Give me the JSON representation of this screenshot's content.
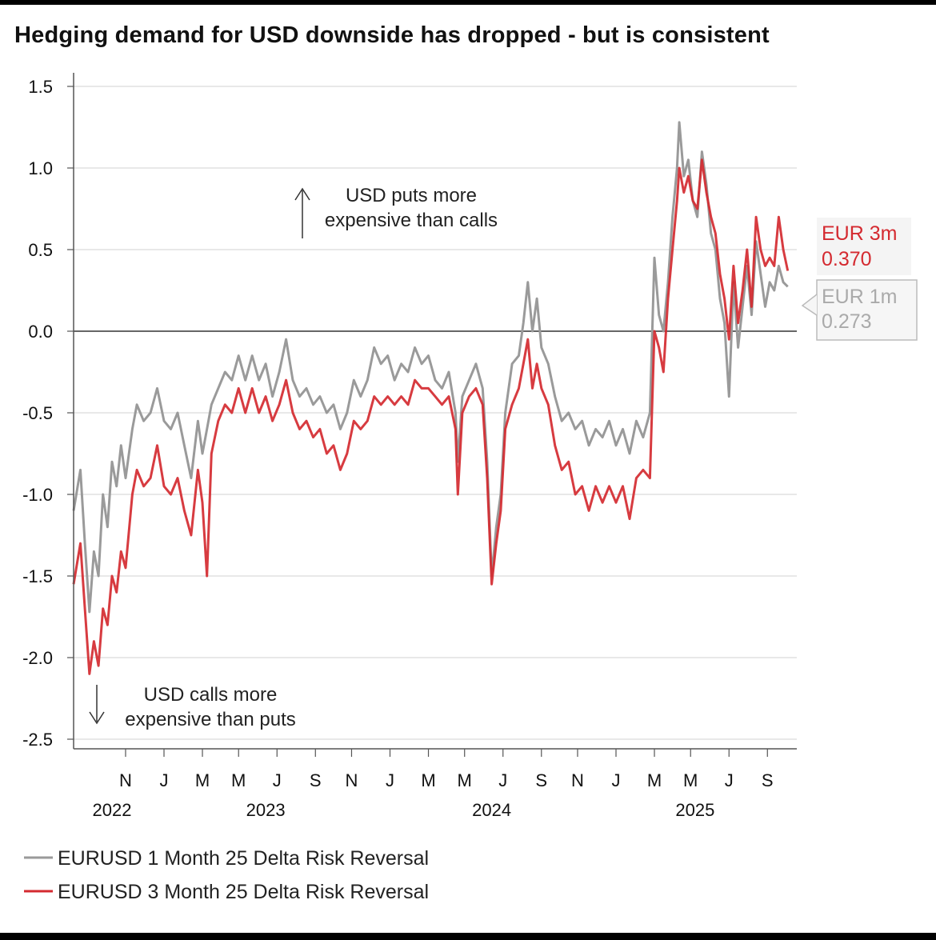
{
  "title": "Hedging demand for USD downside has dropped - but is consistent",
  "colors": {
    "one_month": "#9a9a9a",
    "three_month": "#d42a30",
    "overlap": "#8b1a1e",
    "grid": "#d9d9d9",
    "zero": "#666666"
  },
  "annotations": {
    "up_line1": "USD puts more",
    "up_line2": "expensive than calls",
    "down_line1": "USD calls more",
    "down_line2": "expensive than puts"
  },
  "end_labels": {
    "three_month": {
      "name": "EUR 3m",
      "value": "0.370"
    },
    "one_month": {
      "name": "EUR 1m",
      "value": "0.273"
    }
  },
  "legend": [
    {
      "label": "EURUSD 1 Month 25 Delta Risk Reversal",
      "color": "#9a9a9a"
    },
    {
      "label": "EURUSD 3 Month 25 Delta Risk Reversal",
      "color": "#d42a30"
    }
  ],
  "chart_data": {
    "type": "line",
    "title": "Hedging demand for USD downside has dropped - but is consistent",
    "xlabel": "",
    "ylabel": "",
    "ylim": [
      -2.5,
      1.5
    ],
    "yticks": [
      "1.5",
      "1.0",
      "0.5",
      "0.0",
      "-0.5",
      "-1.0",
      "-1.5",
      "-2.0",
      "-2.5"
    ],
    "xlim": [
      2022.6,
      2025.8
    ],
    "xticks": [
      {
        "x": 2022.83,
        "label": "N"
      },
      {
        "x": 2023.0,
        "label": "J"
      },
      {
        "x": 2023.17,
        "label": "M"
      },
      {
        "x": 2023.33,
        "label": "M"
      },
      {
        "x": 2023.5,
        "label": "J"
      },
      {
        "x": 2023.67,
        "label": "S"
      },
      {
        "x": 2023.83,
        "label": "N"
      },
      {
        "x": 2024.0,
        "label": "J"
      },
      {
        "x": 2024.17,
        "label": "M"
      },
      {
        "x": 2024.33,
        "label": "M"
      },
      {
        "x": 2024.5,
        "label": "J"
      },
      {
        "x": 2024.67,
        "label": "S"
      },
      {
        "x": 2024.83,
        "label": "N"
      },
      {
        "x": 2025.0,
        "label": "J"
      },
      {
        "x": 2025.17,
        "label": "M"
      },
      {
        "x": 2025.33,
        "label": "M"
      },
      {
        "x": 2025.5,
        "label": "J"
      },
      {
        "x": 2025.67,
        "label": "S"
      }
    ],
    "year_labels": [
      {
        "x": 2022.77,
        "label": "2022"
      },
      {
        "x": 2023.45,
        "label": "2023"
      },
      {
        "x": 2024.45,
        "label": "2024"
      },
      {
        "x": 2025.35,
        "label": "2025"
      }
    ],
    "series": [
      {
        "name": "EURUSD 1 Month 25 Delta Risk Reversal",
        "color": "#9a9a9a",
        "points": [
          [
            2022.6,
            -1.1
          ],
          [
            2022.63,
            -0.85
          ],
          [
            2022.65,
            -1.3
          ],
          [
            2022.67,
            -1.72
          ],
          [
            2022.69,
            -1.35
          ],
          [
            2022.71,
            -1.5
          ],
          [
            2022.73,
            -1.0
          ],
          [
            2022.75,
            -1.2
          ],
          [
            2022.77,
            -0.8
          ],
          [
            2022.79,
            -0.95
          ],
          [
            2022.81,
            -0.7
          ],
          [
            2022.83,
            -0.9
          ],
          [
            2022.86,
            -0.6
          ],
          [
            2022.88,
            -0.45
          ],
          [
            2022.91,
            -0.55
          ],
          [
            2022.94,
            -0.5
          ],
          [
            2022.97,
            -0.35
          ],
          [
            2023.0,
            -0.55
          ],
          [
            2023.03,
            -0.6
          ],
          [
            2023.06,
            -0.5
          ],
          [
            2023.09,
            -0.7
          ],
          [
            2023.12,
            -0.9
          ],
          [
            2023.15,
            -0.55
          ],
          [
            2023.17,
            -0.75
          ],
          [
            2023.19,
            -0.6
          ],
          [
            2023.21,
            -0.45
          ],
          [
            2023.24,
            -0.35
          ],
          [
            2023.27,
            -0.25
          ],
          [
            2023.3,
            -0.3
          ],
          [
            2023.33,
            -0.15
          ],
          [
            2023.36,
            -0.3
          ],
          [
            2023.39,
            -0.15
          ],
          [
            2023.42,
            -0.3
          ],
          [
            2023.45,
            -0.2
          ],
          [
            2023.48,
            -0.4
          ],
          [
            2023.51,
            -0.25
          ],
          [
            2023.54,
            -0.05
          ],
          [
            2023.57,
            -0.3
          ],
          [
            2023.6,
            -0.4
          ],
          [
            2023.63,
            -0.35
          ],
          [
            2023.66,
            -0.45
          ],
          [
            2023.69,
            -0.4
          ],
          [
            2023.72,
            -0.5
          ],
          [
            2023.75,
            -0.45
          ],
          [
            2023.78,
            -0.6
          ],
          [
            2023.81,
            -0.5
          ],
          [
            2023.84,
            -0.3
          ],
          [
            2023.87,
            -0.4
          ],
          [
            2023.9,
            -0.3
          ],
          [
            2023.93,
            -0.1
          ],
          [
            2023.96,
            -0.2
          ],
          [
            2023.99,
            -0.15
          ],
          [
            2024.02,
            -0.3
          ],
          [
            2024.05,
            -0.2
          ],
          [
            2024.08,
            -0.25
          ],
          [
            2024.11,
            -0.1
          ],
          [
            2024.14,
            -0.2
          ],
          [
            2024.17,
            -0.15
          ],
          [
            2024.2,
            -0.3
          ],
          [
            2024.23,
            -0.35
          ],
          [
            2024.26,
            -0.25
          ],
          [
            2024.29,
            -0.5
          ],
          [
            2024.3,
            -0.8
          ],
          [
            2024.32,
            -0.4
          ],
          [
            2024.35,
            -0.3
          ],
          [
            2024.38,
            -0.2
          ],
          [
            2024.41,
            -0.35
          ],
          [
            2024.43,
            -0.8
          ],
          [
            2024.45,
            -1.5
          ],
          [
            2024.47,
            -1.2
          ],
          [
            2024.49,
            -1.0
          ],
          [
            2024.51,
            -0.5
          ],
          [
            2024.54,
            -0.2
          ],
          [
            2024.57,
            -0.15
          ],
          [
            2024.59,
            0.05
          ],
          [
            2024.61,
            0.3
          ],
          [
            2024.63,
            0.0
          ],
          [
            2024.65,
            0.2
          ],
          [
            2024.67,
            -0.1
          ],
          [
            2024.7,
            -0.2
          ],
          [
            2024.73,
            -0.4
          ],
          [
            2024.76,
            -0.55
          ],
          [
            2024.79,
            -0.5
          ],
          [
            2024.82,
            -0.6
          ],
          [
            2024.85,
            -0.55
          ],
          [
            2024.88,
            -0.7
          ],
          [
            2024.91,
            -0.6
          ],
          [
            2024.94,
            -0.65
          ],
          [
            2024.97,
            -0.55
          ],
          [
            2025.0,
            -0.7
          ],
          [
            2025.03,
            -0.6
          ],
          [
            2025.06,
            -0.75
          ],
          [
            2025.09,
            -0.55
          ],
          [
            2025.12,
            -0.65
          ],
          [
            2025.15,
            -0.5
          ],
          [
            2025.17,
            0.45
          ],
          [
            2025.19,
            0.1
          ],
          [
            2025.21,
            0.0
          ],
          [
            2025.23,
            0.3
          ],
          [
            2025.25,
            0.7
          ],
          [
            2025.27,
            1.0
          ],
          [
            2025.28,
            1.28
          ],
          [
            2025.3,
            0.95
          ],
          [
            2025.32,
            1.05
          ],
          [
            2025.34,
            0.8
          ],
          [
            2025.36,
            0.7
          ],
          [
            2025.38,
            1.1
          ],
          [
            2025.4,
            0.9
          ],
          [
            2025.42,
            0.6
          ],
          [
            2025.44,
            0.5
          ],
          [
            2025.46,
            0.2
          ],
          [
            2025.48,
            0.05
          ],
          [
            2025.5,
            -0.4
          ],
          [
            2025.52,
            0.3
          ],
          [
            2025.54,
            -0.1
          ],
          [
            2025.56,
            0.15
          ],
          [
            2025.58,
            0.4
          ],
          [
            2025.6,
            0.1
          ],
          [
            2025.62,
            0.55
          ],
          [
            2025.64,
            0.35
          ],
          [
            2025.66,
            0.15
          ],
          [
            2025.68,
            0.3
          ],
          [
            2025.7,
            0.25
          ],
          [
            2025.72,
            0.4
          ],
          [
            2025.74,
            0.3
          ],
          [
            2025.76,
            0.273
          ]
        ]
      },
      {
        "name": "EURUSD 3 Month 25 Delta Risk Reversal",
        "color": "#d42a30",
        "points": [
          [
            2022.6,
            -1.55
          ],
          [
            2022.63,
            -1.3
          ],
          [
            2022.65,
            -1.7
          ],
          [
            2022.67,
            -2.1
          ],
          [
            2022.69,
            -1.9
          ],
          [
            2022.71,
            -2.05
          ],
          [
            2022.73,
            -1.7
          ],
          [
            2022.75,
            -1.8
          ],
          [
            2022.77,
            -1.5
          ],
          [
            2022.79,
            -1.6
          ],
          [
            2022.81,
            -1.35
          ],
          [
            2022.83,
            -1.45
          ],
          [
            2022.86,
            -1.0
          ],
          [
            2022.88,
            -0.85
          ],
          [
            2022.91,
            -0.95
          ],
          [
            2022.94,
            -0.9
          ],
          [
            2022.97,
            -0.7
          ],
          [
            2023.0,
            -0.95
          ],
          [
            2023.03,
            -1.0
          ],
          [
            2023.06,
            -0.9
          ],
          [
            2023.09,
            -1.1
          ],
          [
            2023.12,
            -1.25
          ],
          [
            2023.15,
            -0.85
          ],
          [
            2023.17,
            -1.05
          ],
          [
            2023.19,
            -1.5
          ],
          [
            2023.21,
            -0.75
          ],
          [
            2023.24,
            -0.55
          ],
          [
            2023.27,
            -0.45
          ],
          [
            2023.3,
            -0.5
          ],
          [
            2023.33,
            -0.35
          ],
          [
            2023.36,
            -0.5
          ],
          [
            2023.39,
            -0.35
          ],
          [
            2023.42,
            -0.5
          ],
          [
            2023.45,
            -0.4
          ],
          [
            2023.48,
            -0.55
          ],
          [
            2023.51,
            -0.45
          ],
          [
            2023.54,
            -0.3
          ],
          [
            2023.57,
            -0.5
          ],
          [
            2023.6,
            -0.6
          ],
          [
            2023.63,
            -0.55
          ],
          [
            2023.66,
            -0.65
          ],
          [
            2023.69,
            -0.6
          ],
          [
            2023.72,
            -0.75
          ],
          [
            2023.75,
            -0.7
          ],
          [
            2023.78,
            -0.85
          ],
          [
            2023.81,
            -0.75
          ],
          [
            2023.84,
            -0.55
          ],
          [
            2023.87,
            -0.6
          ],
          [
            2023.9,
            -0.55
          ],
          [
            2023.93,
            -0.4
          ],
          [
            2023.96,
            -0.45
          ],
          [
            2023.99,
            -0.4
          ],
          [
            2024.02,
            -0.45
          ],
          [
            2024.05,
            -0.4
          ],
          [
            2024.08,
            -0.45
          ],
          [
            2024.11,
            -0.3
          ],
          [
            2024.14,
            -0.35
          ],
          [
            2024.17,
            -0.35
          ],
          [
            2024.2,
            -0.4
          ],
          [
            2024.23,
            -0.45
          ],
          [
            2024.26,
            -0.4
          ],
          [
            2024.29,
            -0.6
          ],
          [
            2024.3,
            -1.0
          ],
          [
            2024.32,
            -0.5
          ],
          [
            2024.35,
            -0.4
          ],
          [
            2024.38,
            -0.35
          ],
          [
            2024.41,
            -0.45
          ],
          [
            2024.43,
            -0.9
          ],
          [
            2024.45,
            -1.55
          ],
          [
            2024.47,
            -1.3
          ],
          [
            2024.49,
            -1.1
          ],
          [
            2024.51,
            -0.6
          ],
          [
            2024.54,
            -0.45
          ],
          [
            2024.57,
            -0.35
          ],
          [
            2024.59,
            -0.2
          ],
          [
            2024.61,
            -0.05
          ],
          [
            2024.63,
            -0.35
          ],
          [
            2024.65,
            -0.2
          ],
          [
            2024.67,
            -0.35
          ],
          [
            2024.7,
            -0.45
          ],
          [
            2024.73,
            -0.7
          ],
          [
            2024.76,
            -0.85
          ],
          [
            2024.79,
            -0.8
          ],
          [
            2024.82,
            -1.0
          ],
          [
            2024.85,
            -0.95
          ],
          [
            2024.88,
            -1.1
          ],
          [
            2024.91,
            -0.95
          ],
          [
            2024.94,
            -1.05
          ],
          [
            2024.97,
            -0.95
          ],
          [
            2025.0,
            -1.05
          ],
          [
            2025.03,
            -0.95
          ],
          [
            2025.06,
            -1.15
          ],
          [
            2025.09,
            -0.9
          ],
          [
            2025.12,
            -0.85
          ],
          [
            2025.15,
            -0.9
          ],
          [
            2025.17,
            0.0
          ],
          [
            2025.19,
            -0.1
          ],
          [
            2025.21,
            -0.25
          ],
          [
            2025.23,
            0.2
          ],
          [
            2025.25,
            0.5
          ],
          [
            2025.27,
            0.8
          ],
          [
            2025.28,
            1.0
          ],
          [
            2025.3,
            0.85
          ],
          [
            2025.32,
            0.95
          ],
          [
            2025.34,
            0.8
          ],
          [
            2025.36,
            0.75
          ],
          [
            2025.38,
            1.05
          ],
          [
            2025.4,
            0.85
          ],
          [
            2025.42,
            0.7
          ],
          [
            2025.44,
            0.6
          ],
          [
            2025.46,
            0.35
          ],
          [
            2025.48,
            0.2
          ],
          [
            2025.5,
            -0.05
          ],
          [
            2025.52,
            0.4
          ],
          [
            2025.54,
            0.05
          ],
          [
            2025.56,
            0.25
          ],
          [
            2025.58,
            0.5
          ],
          [
            2025.6,
            0.15
          ],
          [
            2025.62,
            0.7
          ],
          [
            2025.64,
            0.5
          ],
          [
            2025.66,
            0.4
          ],
          [
            2025.68,
            0.45
          ],
          [
            2025.7,
            0.4
          ],
          [
            2025.72,
            0.7
          ],
          [
            2025.74,
            0.5
          ],
          [
            2025.76,
            0.37
          ]
        ]
      }
    ]
  }
}
